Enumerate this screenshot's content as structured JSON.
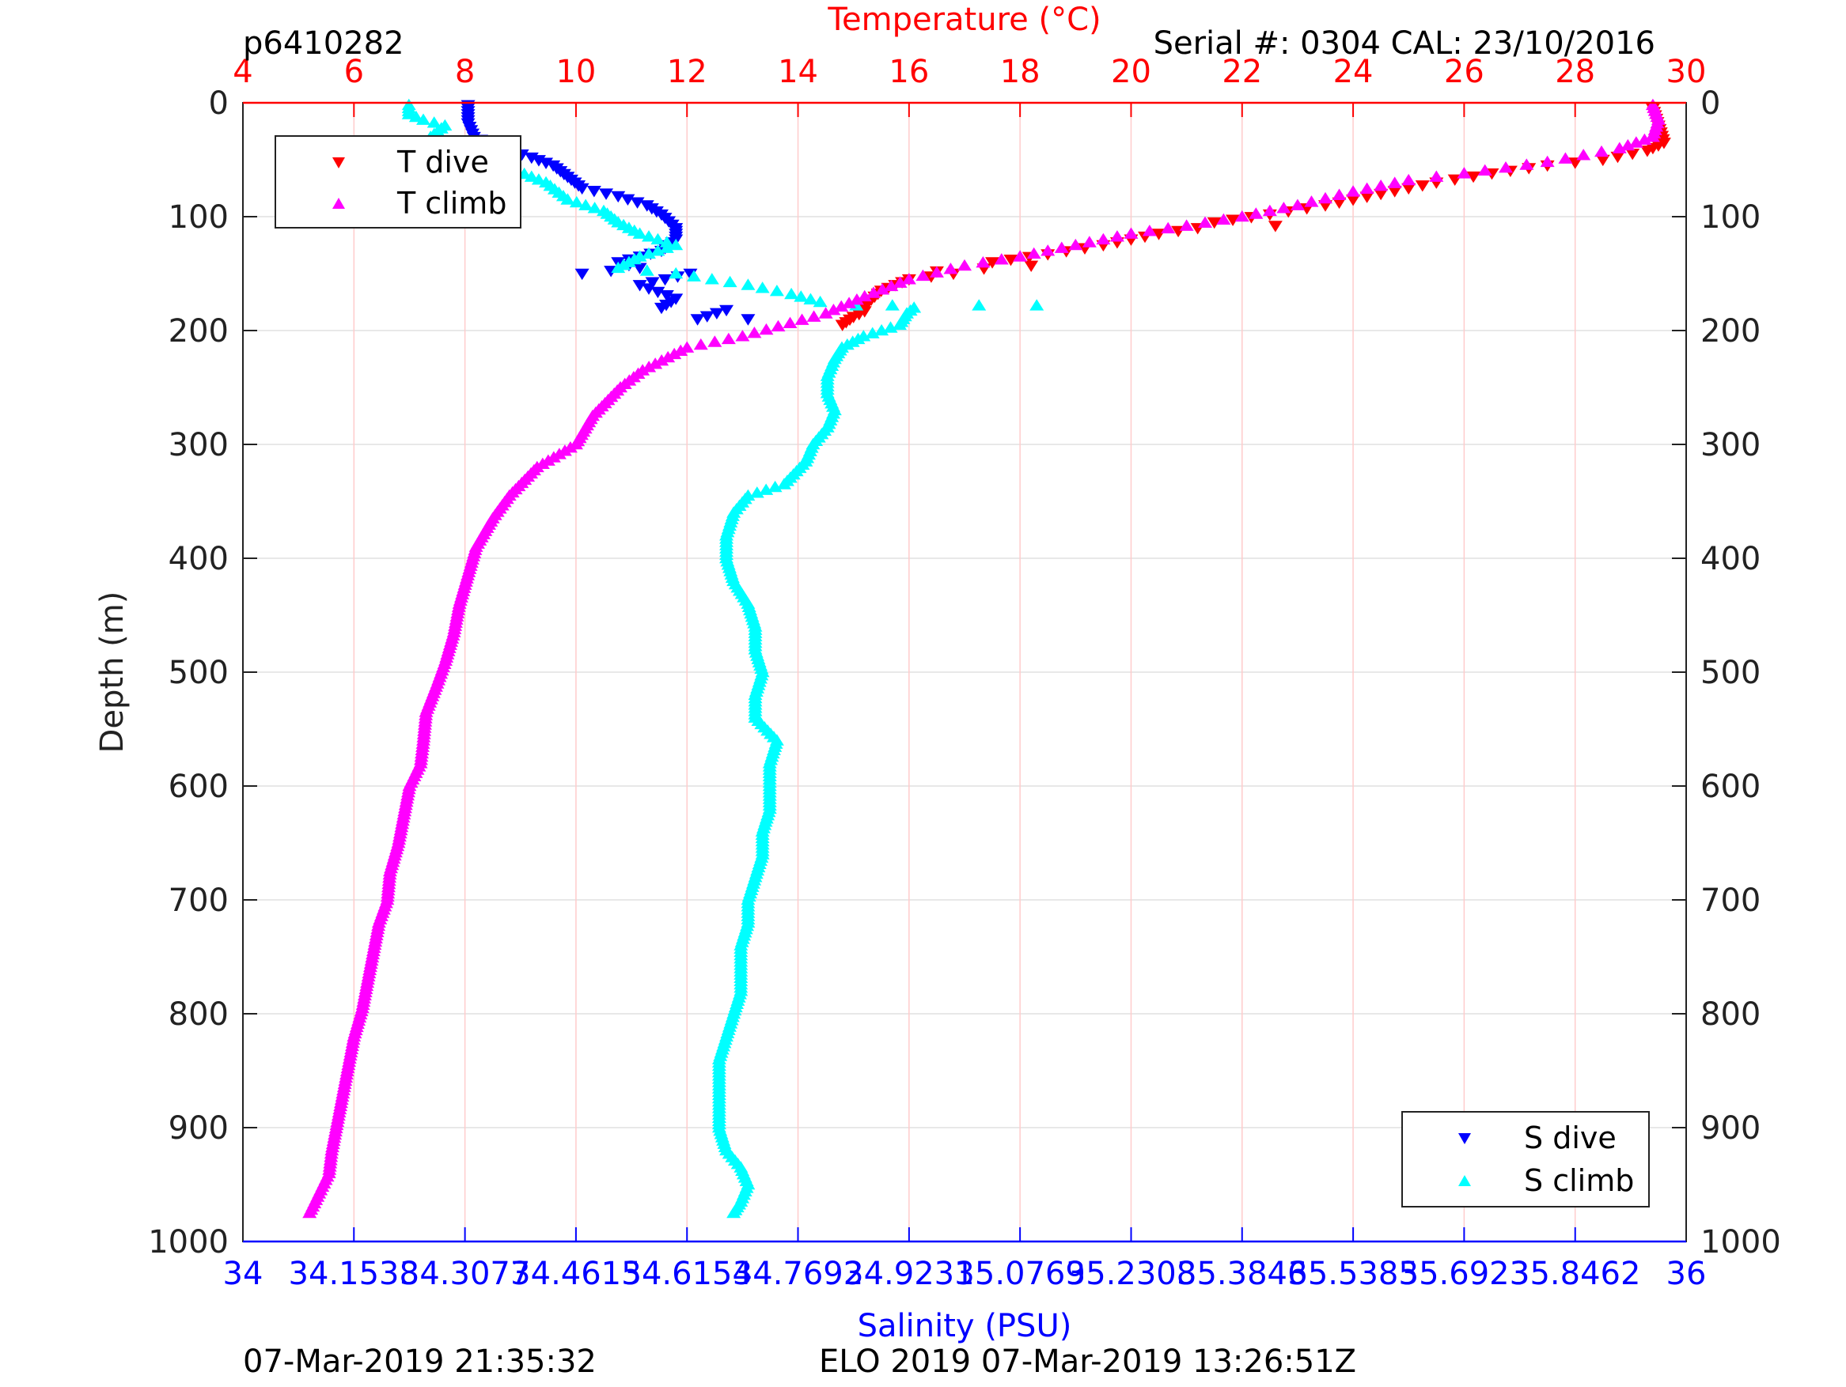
{
  "header": {
    "left": "p6410282",
    "right": "Serial #: 0304  CAL: 23/10/2016"
  },
  "footer": {
    "left": "07-Mar-2019 21:35:32",
    "center": "ELO 2019 07-Mar-2019 13:26:51Z"
  },
  "chart_data": {
    "type": "scatter",
    "colors": {
      "temperature_axis": "#ff0000",
      "salinity_axis": "#0000ff",
      "t_dive": "#ff0000",
      "t_climb": "#ff00ff",
      "s_dive": "#0000ff",
      "s_climb": "#00ffff",
      "vertical_grid": "#ffcccc",
      "horizontal_grid": "#e0e0e0"
    },
    "y_axis": {
      "label": "Depth (m)",
      "range": [
        0,
        1000
      ],
      "reversed": true,
      "ticks": [
        "0",
        "100",
        "200",
        "300",
        "400",
        "500",
        "600",
        "700",
        "800",
        "900",
        "1000"
      ],
      "tick_values": [
        0,
        100,
        200,
        300,
        400,
        500,
        600,
        700,
        800,
        900,
        1000
      ]
    },
    "x_axis_top": {
      "label": "Temperature (°C)",
      "range": [
        4,
        30
      ],
      "ticks": [
        "4",
        "6",
        "8",
        "10",
        "12",
        "14",
        "16",
        "18",
        "20",
        "22",
        "24",
        "26",
        "28",
        "30"
      ],
      "tick_values": [
        4,
        6,
        8,
        10,
        12,
        14,
        16,
        18,
        20,
        22,
        24,
        26,
        28,
        30
      ]
    },
    "x_axis_bottom": {
      "label": "Salinity (PSU)",
      "range": [
        34,
        36
      ],
      "ticks": [
        "34",
        "34.1538",
        "34.3077",
        "34.4615",
        "34.6154",
        "34.7692",
        "34.9231",
        "35.0769",
        "35.2308",
        "35.3846",
        "35.5385",
        "35.6923",
        "35.8462",
        "36"
      ],
      "tick_values": [
        34,
        34.1538,
        34.3077,
        34.4615,
        34.6154,
        34.7692,
        34.9231,
        35.0769,
        35.2308,
        35.3846,
        35.5385,
        35.6923,
        35.8462,
        36
      ]
    },
    "grid": true,
    "legend_top_left": [
      "T dive",
      "T climb"
    ],
    "legend_bottom_right": [
      "S dive",
      "S climb"
    ],
    "series": [
      {
        "name": "T dive",
        "axis": "temperature",
        "marker": "triangle-down",
        "points": [
          [
            29.4,
            5
          ],
          [
            29.5,
            20
          ],
          [
            29.6,
            35
          ],
          [
            29.3,
            42
          ],
          [
            28.5,
            50
          ],
          [
            27.5,
            55
          ],
          [
            26.5,
            62
          ],
          [
            25.5,
            70
          ],
          [
            24.5,
            80
          ],
          [
            23.5,
            90
          ],
          [
            22.5,
            98
          ],
          [
            21.5,
            105
          ],
          [
            20.5,
            115
          ],
          [
            19.5,
            125
          ],
          [
            18.5,
            133
          ],
          [
            17.5,
            140
          ],
          [
            16.5,
            148
          ],
          [
            16,
            155
          ],
          [
            15.5,
            165
          ],
          [
            15.2,
            178
          ],
          [
            15,
            188
          ],
          [
            14.8,
            195
          ],
          [
            15.2,
            183
          ],
          [
            16.8,
            150
          ],
          [
            18.2,
            143
          ],
          [
            21.2,
            110
          ],
          [
            22.6,
            108
          ]
        ]
      },
      {
        "name": "T climb",
        "axis": "temperature",
        "marker": "triangle-up",
        "points": [
          [
            29.4,
            2
          ],
          [
            29.5,
            15
          ],
          [
            29.4,
            30
          ],
          [
            28.8,
            40
          ],
          [
            27.5,
            52
          ],
          [
            26,
            62
          ],
          [
            25,
            68
          ],
          [
            24,
            78
          ],
          [
            23,
            90
          ],
          [
            22,
            100
          ],
          [
            21,
            108
          ],
          [
            20,
            115
          ],
          [
            19,
            125
          ],
          [
            18,
            135
          ],
          [
            17,
            143
          ],
          [
            16,
            155
          ],
          [
            15.2,
            170
          ],
          [
            14.5,
            185
          ],
          [
            13,
            205
          ],
          [
            12,
            215
          ],
          [
            11.2,
            235
          ],
          [
            10.8,
            250
          ],
          [
            10.3,
            275
          ],
          [
            10,
            300
          ],
          [
            9.3,
            320
          ],
          [
            8.8,
            345
          ],
          [
            8.5,
            365
          ],
          [
            8.2,
            390
          ],
          [
            8.05,
            415
          ],
          [
            7.9,
            440
          ],
          [
            7.8,
            465
          ],
          [
            7.65,
            490
          ],
          [
            7.5,
            510
          ],
          [
            7.3,
            535
          ],
          [
            7.25,
            560
          ],
          [
            7.2,
            580
          ],
          [
            7,
            600
          ],
          [
            6.9,
            625
          ],
          [
            6.8,
            650
          ],
          [
            6.65,
            675
          ],
          [
            6.6,
            700
          ],
          [
            6.45,
            720
          ],
          [
            6.35,
            745
          ],
          [
            6.25,
            770
          ],
          [
            6.15,
            795
          ],
          [
            6,
            820
          ],
          [
            5.9,
            845
          ],
          [
            5.8,
            870
          ],
          [
            5.7,
            895
          ],
          [
            5.6,
            920
          ],
          [
            5.55,
            940
          ],
          [
            5.4,
            955
          ],
          [
            5.2,
            975
          ]
        ]
      },
      {
        "name": "S dive",
        "axis": "salinity",
        "marker": "triangle-down",
        "points": [
          [
            34.312,
            2
          ],
          [
            34.312,
            10
          ],
          [
            34.312,
            18
          ],
          [
            34.32,
            30
          ],
          [
            34.36,
            40
          ],
          [
            34.4,
            48
          ],
          [
            34.43,
            55
          ],
          [
            34.45,
            65
          ],
          [
            34.47,
            75
          ],
          [
            34.52,
            82
          ],
          [
            34.56,
            90
          ],
          [
            34.58,
            98
          ],
          [
            34.6,
            110
          ],
          [
            34.6,
            120
          ],
          [
            34.58,
            130
          ],
          [
            34.52,
            140
          ],
          [
            34.47,
            150
          ],
          [
            34.55,
            160
          ],
          [
            34.6,
            172
          ],
          [
            34.67,
            182
          ],
          [
            34.63,
            190
          ],
          [
            34.7,
            190
          ],
          [
            34.58,
            180
          ],
          [
            34.55,
            145
          ],
          [
            34.62,
            150
          ]
        ]
      },
      {
        "name": "S climb",
        "axis": "salinity",
        "marker": "triangle-up",
        "points": [
          [
            34.23,
            2
          ],
          [
            34.23,
            10
          ],
          [
            34.25,
            15
          ],
          [
            34.28,
            20
          ],
          [
            34.26,
            30
          ],
          [
            34.3,
            40
          ],
          [
            34.35,
            50
          ],
          [
            34.38,
            60
          ],
          [
            34.42,
            70
          ],
          [
            34.45,
            85
          ],
          [
            34.5,
            95
          ],
          [
            34.52,
            105
          ],
          [
            34.55,
            115
          ],
          [
            34.6,
            125
          ],
          [
            34.55,
            135
          ],
          [
            34.52,
            145
          ],
          [
            34.6,
            150
          ],
          [
            34.65,
            155
          ],
          [
            34.7,
            160
          ],
          [
            34.76,
            168
          ],
          [
            34.8,
            175
          ],
          [
            34.85,
            178
          ],
          [
            34.9,
            178
          ],
          [
            34.93,
            180
          ],
          [
            35.02,
            178
          ],
          [
            35.1,
            178
          ],
          [
            34.92,
            185
          ],
          [
            34.91,
            195
          ],
          [
            34.86,
            205
          ],
          [
            34.83,
            215
          ],
          [
            34.82,
            225
          ],
          [
            34.81,
            240
          ],
          [
            34.81,
            255
          ],
          [
            34.82,
            270
          ],
          [
            34.81,
            285
          ],
          [
            34.79,
            300
          ],
          [
            34.78,
            315
          ],
          [
            34.75,
            335
          ],
          [
            34.7,
            345
          ],
          [
            34.68,
            360
          ],
          [
            34.67,
            380
          ],
          [
            34.67,
            400
          ],
          [
            34.68,
            420
          ],
          [
            34.7,
            440
          ],
          [
            34.71,
            460
          ],
          [
            34.71,
            480
          ],
          [
            34.72,
            500
          ],
          [
            34.71,
            520
          ],
          [
            34.71,
            540
          ],
          [
            34.74,
            560
          ],
          [
            34.73,
            580
          ],
          [
            34.73,
            600
          ],
          [
            34.73,
            620
          ],
          [
            34.72,
            640
          ],
          [
            34.72,
            660
          ],
          [
            34.71,
            680
          ],
          [
            34.7,
            700
          ],
          [
            34.7,
            720
          ],
          [
            34.69,
            740
          ],
          [
            34.69,
            760
          ],
          [
            34.69,
            780
          ],
          [
            34.68,
            800
          ],
          [
            34.67,
            820
          ],
          [
            34.66,
            840
          ],
          [
            34.66,
            860
          ],
          [
            34.66,
            880
          ],
          [
            34.66,
            900
          ],
          [
            34.67,
            920
          ],
          [
            34.69,
            935
          ],
          [
            34.7,
            950
          ],
          [
            34.69,
            965
          ],
          [
            34.68,
            975
          ]
        ]
      }
    ]
  }
}
